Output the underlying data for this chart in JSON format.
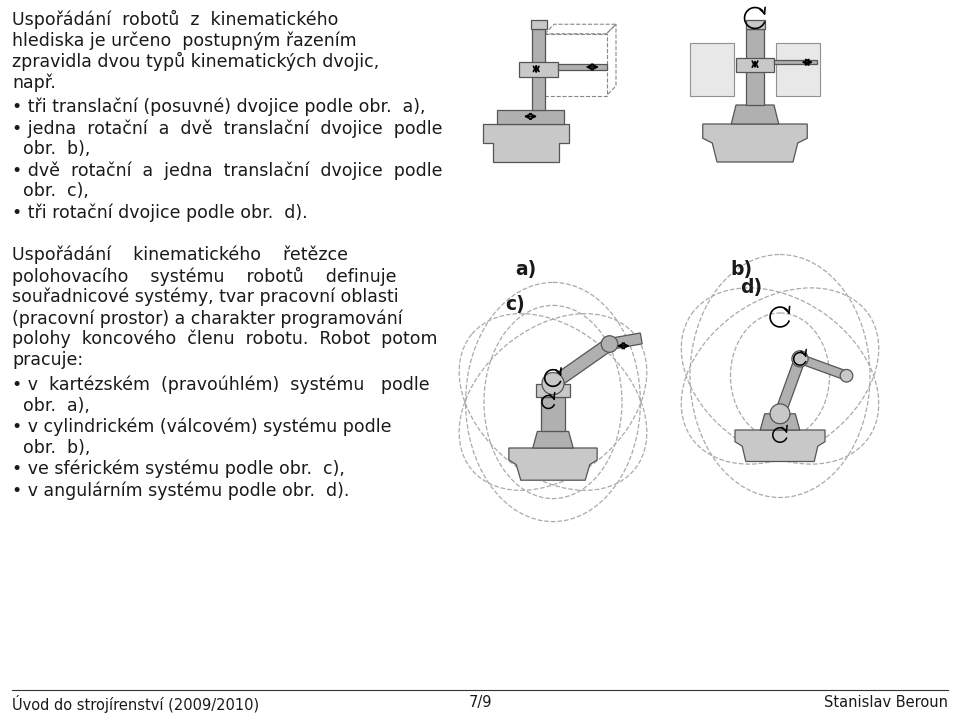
{
  "bg_color": "#ffffff",
  "text_color": "#1a1a1a",
  "para1_lines": [
    "Uspořádání  robotů  z  kinematického",
    "hlediska je určeno  postupným řazením",
    "zpravidla dvou typů kinematických dvojic,",
    "např."
  ],
  "bullets1": [
    "• tři translační (posuvné) dvojice podle obr.  a),",
    "• jedna  rotační  a  dvě  translační  dvojice  podle",
    "  obr.  b),",
    "• dvě  rotační  a  jedna  translační  dvojice  podle",
    "  obr.  c),",
    "• tři rotační dvojice podle obr.  d)."
  ],
  "para2_lines": [
    "Uspořádání    kinematického    řetězce",
    "polohovacího    systému    robotů    definuje",
    "souřadnicové systémy, tvar pracovní oblasti",
    "(pracovní prostor) a charakter programování",
    "polohy  koncového  členu  robotu.  Robot  potom",
    "pracuje:"
  ],
  "bullets2": [
    "• v  kartézském  (pravoúhlém)  systému   podle",
    "  obr.  a),",
    "• v cylindrickém (válcovém) systému podle",
    "  obr.  b),",
    "• ve sférickém systému podle obr.  c),",
    "• v angulárním systému podle obr.  d)."
  ],
  "footer_left": "Úvod do strojírenství (2009/2010)",
  "footer_center": "7/9",
  "footer_right": "Stanislav Beroun",
  "label_a": "a)",
  "label_b": "b)",
  "label_c": "c)",
  "label_d": "d)",
  "font_size_body": 12.5,
  "font_size_footer": 10.5,
  "gray_base": "#c8c8c8",
  "gray_mid": "#b0b0b0",
  "gray_light": "#d8d8d8",
  "gray_dark": "#888888",
  "edge_color": "#555555",
  "line_color": "#404040"
}
